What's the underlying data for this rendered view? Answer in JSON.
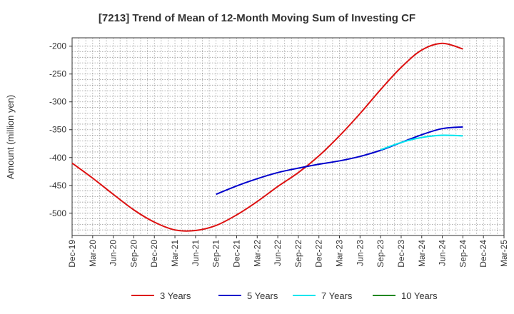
{
  "chart_data": {
    "type": "line",
    "title": "[7213]  Trend of Mean of 12-Month Moving Sum of Investing CF",
    "xlabel": "",
    "ylabel": "Amount (million yen)",
    "ylim": [
      -540,
      -185
    ],
    "yticks": [
      -200,
      -250,
      -300,
      -350,
      -400,
      -450,
      -500
    ],
    "categories": [
      "Dec-19",
      "Mar-20",
      "Jun-20",
      "Sep-20",
      "Dec-20",
      "Mar-21",
      "Jun-21",
      "Sep-21",
      "Dec-21",
      "Mar-22",
      "Jun-22",
      "Sep-22",
      "Dec-22",
      "Mar-23",
      "Jun-23",
      "Sep-23",
      "Dec-23",
      "Mar-24",
      "Jun-24",
      "Sep-24",
      "Dec-24",
      "Mar-25"
    ],
    "grid": true,
    "legend": "bottom",
    "series": [
      {
        "name": "3 Years",
        "color": "#dd1111",
        "values": [
          -410,
          -437,
          -466,
          -494,
          -516,
          -530,
          -531,
          -522,
          -503,
          -479,
          -452,
          -427,
          -397,
          -361,
          -321,
          -278,
          -238,
          -207,
          -195,
          -205,
          null,
          null
        ]
      },
      {
        "name": "5 Years",
        "color": "#0000cc",
        "values": [
          null,
          null,
          null,
          null,
          null,
          null,
          null,
          -466,
          -451,
          -438,
          -427,
          -419,
          -412,
          -406,
          -398,
          -387,
          -373,
          -359,
          -348,
          -345,
          null,
          null
        ]
      },
      {
        "name": "7 Years",
        "color": "#00e5ee",
        "values": [
          null,
          null,
          null,
          null,
          null,
          null,
          null,
          null,
          null,
          null,
          null,
          null,
          null,
          null,
          null,
          -386,
          -373,
          -364,
          -360,
          -361,
          null,
          null
        ]
      },
      {
        "name": "10 Years",
        "color": "#228822",
        "values": [
          null,
          null,
          null,
          null,
          null,
          null,
          null,
          null,
          null,
          null,
          null,
          null,
          null,
          null,
          null,
          null,
          null,
          null,
          null,
          null,
          null,
          null
        ]
      }
    ]
  }
}
